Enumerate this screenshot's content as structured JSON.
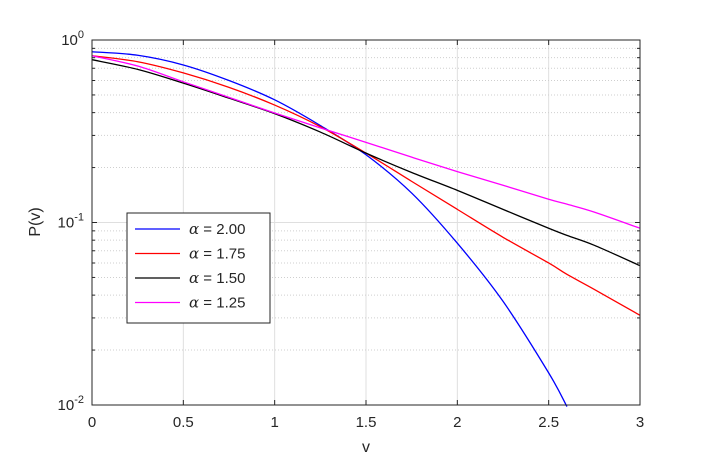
{
  "chart_data": {
    "type": "line",
    "xlabel": "v",
    "ylabel": "P(v)",
    "xlim": [
      0,
      3
    ],
    "ylim": [
      0.01,
      1
    ],
    "yscale": "log",
    "grid": true,
    "minor_grid": true,
    "legend_position": "lower-left",
    "x_ticks": [
      "0",
      "0.5",
      "1",
      "1.5",
      "2",
      "2.5",
      "3"
    ],
    "y_ticks": [
      {
        "value": 1,
        "base": "10",
        "exp": "0"
      },
      {
        "value": 0.1,
        "base": "10",
        "exp": "-1"
      },
      {
        "value": 0.01,
        "base": "10",
        "exp": "-2"
      }
    ],
    "x": [
      0,
      0.25,
      0.5,
      0.75,
      1.0,
      1.25,
      1.5,
      1.75,
      2.0,
      2.25,
      2.5,
      2.6,
      2.75,
      3.0
    ],
    "series": [
      {
        "name": "α = 2.00",
        "symbol": "α",
        "value_text": " = 2.00",
        "color": "#0000ff",
        "values": [
          0.862,
          0.825,
          0.73,
          0.6,
          0.47,
          0.34,
          0.235,
          0.145,
          0.077,
          0.037,
          0.015,
          0.0098,
          null,
          null
        ]
      },
      {
        "name": "α = 1.75",
        "symbol": "α",
        "value_text": " = 1.75",
        "color": "#ff0000",
        "values": [
          0.82,
          0.76,
          0.66,
          0.55,
          0.44,
          0.335,
          0.24,
          0.168,
          0.118,
          0.083,
          0.06,
          0.052,
          0.043,
          0.031
        ]
      },
      {
        "name": "α = 1.50",
        "symbol": "α",
        "value_text": " = 1.50",
        "color": "#000000",
        "values": [
          0.78,
          0.69,
          0.58,
          0.48,
          0.395,
          0.313,
          0.24,
          0.188,
          0.15,
          0.118,
          0.093,
          0.085,
          0.075,
          0.058
        ]
      },
      {
        "name": "α = 1.25",
        "symbol": "α",
        "value_text": " = 1.25",
        "color": "#ff00ff",
        "values": [
          0.82,
          0.72,
          0.59,
          0.485,
          0.398,
          0.33,
          0.275,
          0.228,
          0.19,
          0.16,
          0.134,
          0.126,
          0.114,
          0.093
        ]
      }
    ]
  }
}
